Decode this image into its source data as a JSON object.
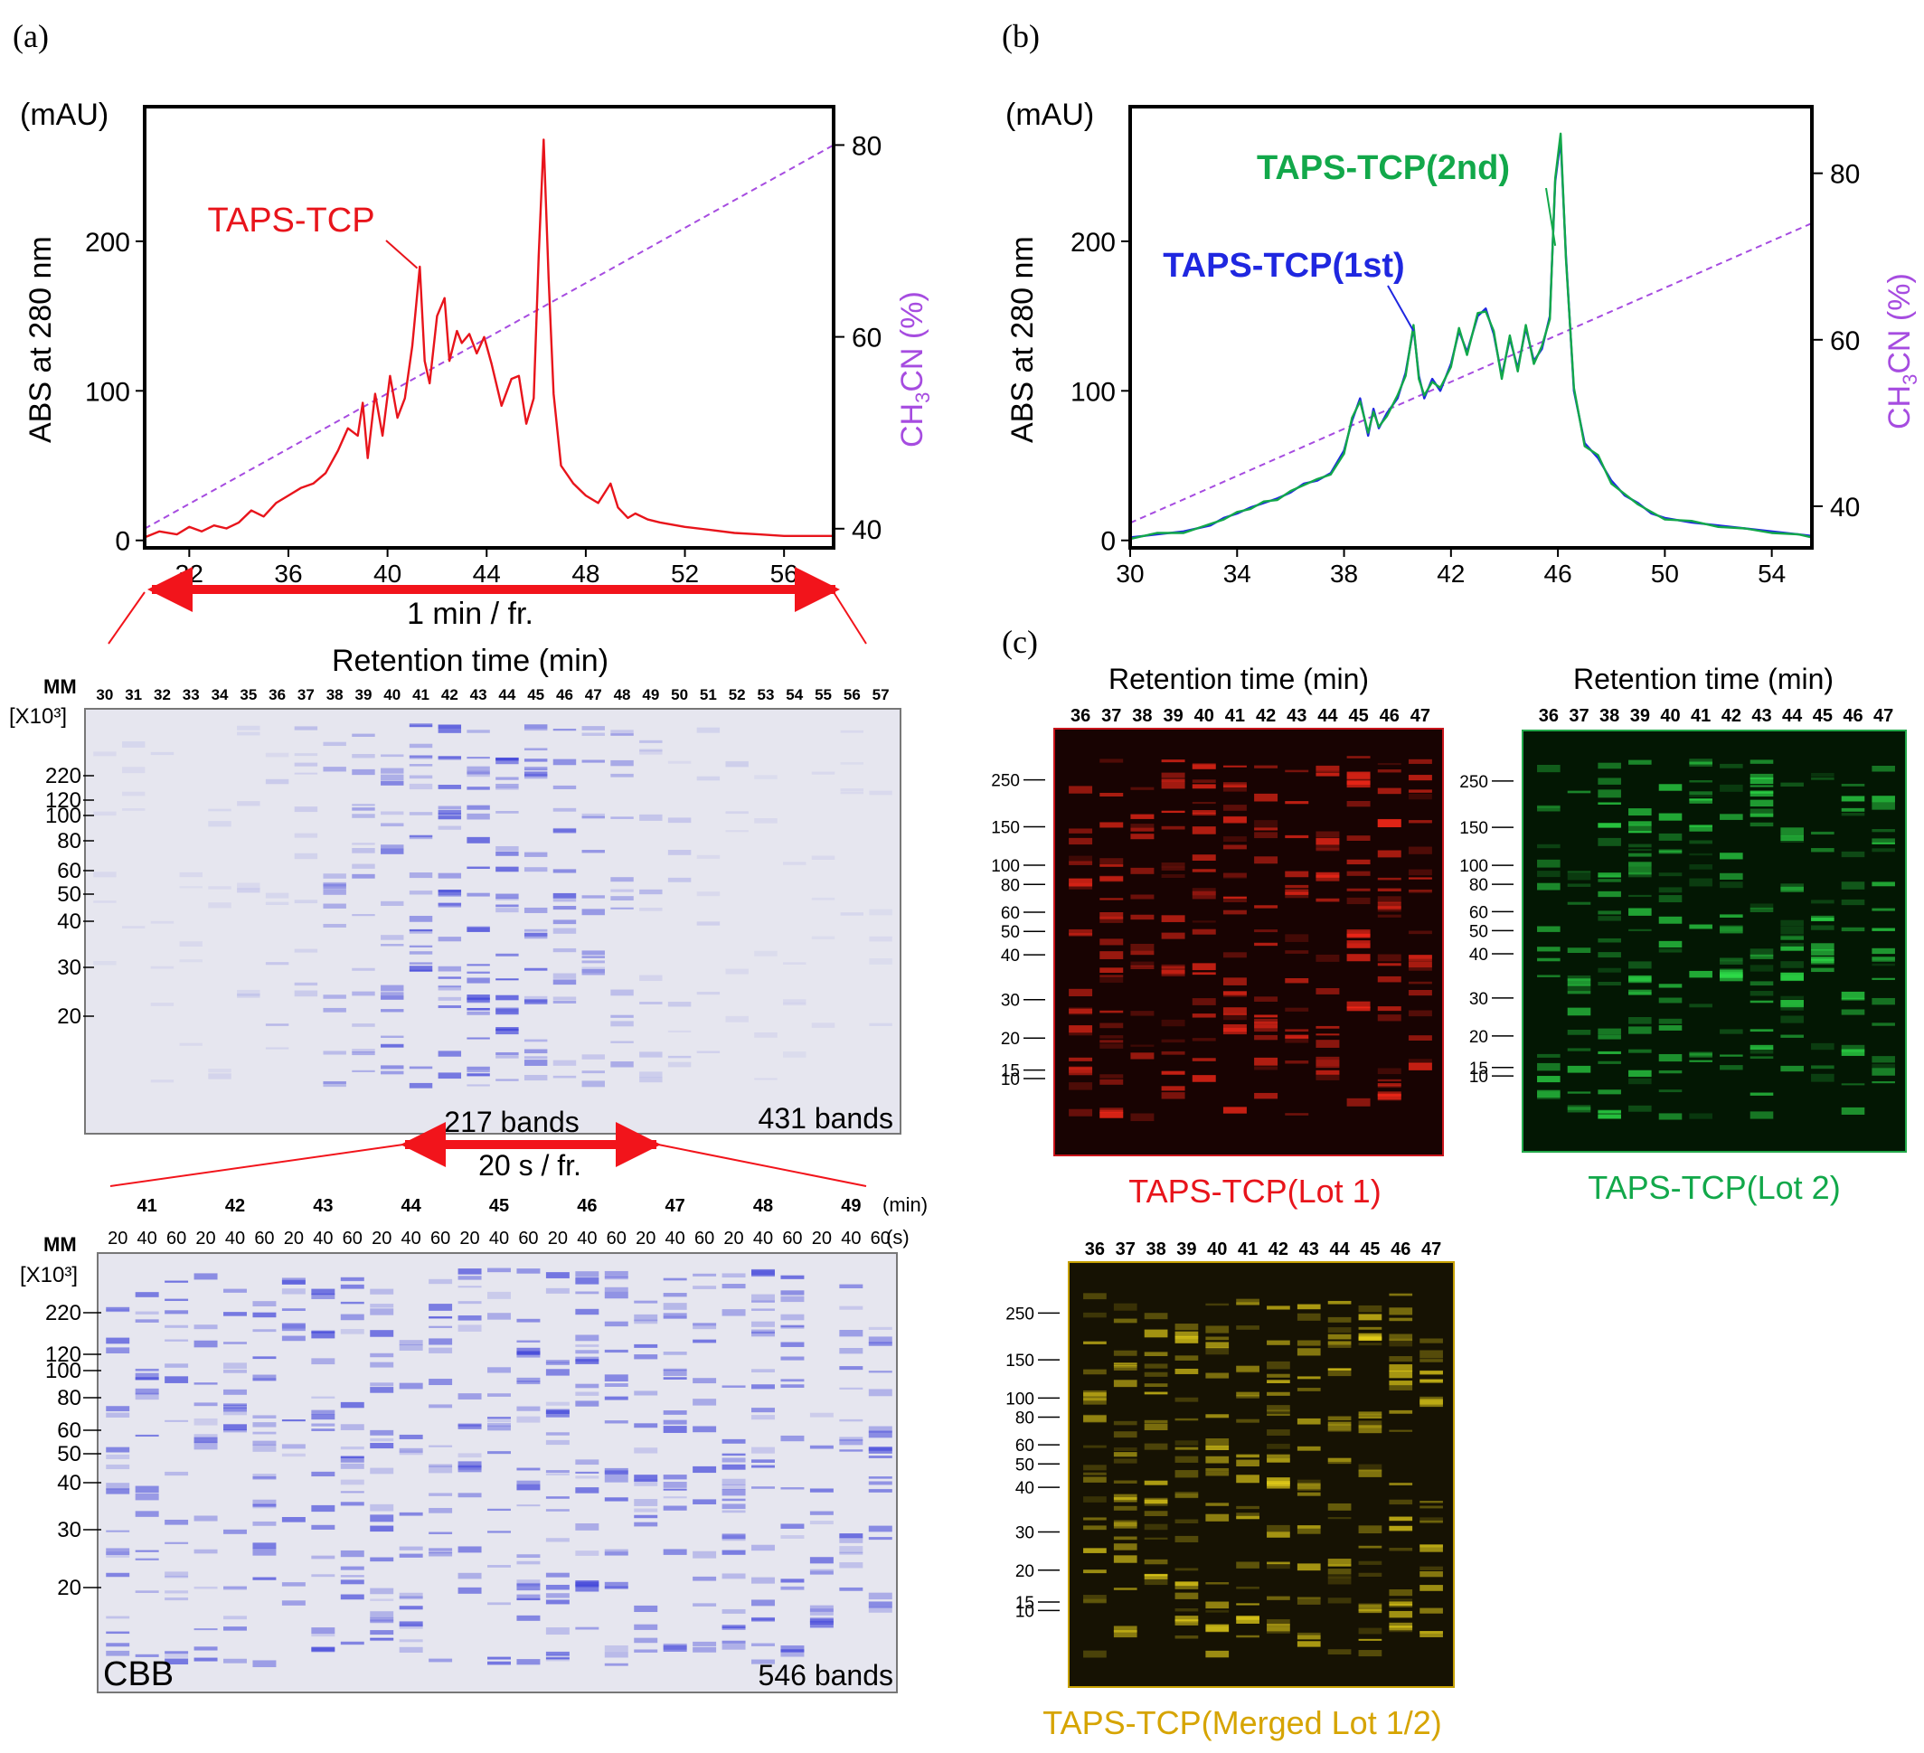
{
  "panel_labels": {
    "a": "(a)",
    "b": "(b)",
    "c": "(c)"
  },
  "colors": {
    "lot1": "#e8141b",
    "lot2": "#12a84a",
    "merged": "#d6a400",
    "first": "#1f27e0",
    "gradient": "#a64ce0",
    "arrow": "#f2141b",
    "cbb_bg": "#e6e6ef",
    "cbb_band": "#3b3fd9"
  },
  "chart_data": [
    {
      "id": "a",
      "type": "line",
      "units_label": "(mAU)",
      "ylabel": "ABS at 280 nm",
      "y2label": "CH3CN (%)",
      "xlim": [
        30.2,
        58
      ],
      "ylim": [
        -5,
        290
      ],
      "y2lim": [
        38,
        84
      ],
      "x_ticks": [
        32,
        36,
        40,
        44,
        48,
        52,
        56
      ],
      "y_ticks": [
        0,
        100,
        200
      ],
      "y2_ticks": [
        40,
        60,
        80
      ],
      "gradient": {
        "x": [
          30.2,
          58
        ],
        "y2": [
          40,
          80
        ]
      },
      "annotations": [
        {
          "text": "TAPS-TCP",
          "color": "#e8141b",
          "x": 41.2,
          "y": 182
        }
      ],
      "series": [
        {
          "color": "#e8141b",
          "x": [
            30.2,
            30.8,
            31.5,
            32,
            32.5,
            33,
            33.5,
            34,
            34.5,
            35,
            35.5,
            36,
            36.5,
            37,
            37.5,
            38,
            38.4,
            38.8,
            39,
            39.2,
            39.5,
            39.8,
            40.1,
            40.4,
            40.7,
            41,
            41.3,
            41.5,
            41.7,
            42,
            42.3,
            42.5,
            42.8,
            43,
            43.3,
            43.6,
            43.9,
            44.2,
            44.6,
            45,
            45.3,
            45.6,
            45.9,
            46.1,
            46.3,
            46.5,
            46.7,
            47,
            47.5,
            48,
            48.5,
            49,
            49.3,
            49.7,
            50,
            50.5,
            51,
            52,
            53,
            54,
            55,
            56,
            57,
            58
          ],
          "y": [
            2,
            6,
            4,
            9,
            6,
            10,
            8,
            12,
            20,
            16,
            25,
            30,
            35,
            38,
            45,
            60,
            75,
            70,
            92,
            55,
            98,
            70,
            110,
            82,
            95,
            130,
            183,
            120,
            105,
            150,
            162,
            120,
            140,
            132,
            138,
            125,
            136,
            118,
            90,
            108,
            110,
            78,
            95,
            190,
            268,
            175,
            98,
            50,
            38,
            30,
            25,
            38,
            22,
            15,
            18,
            14,
            12,
            9,
            7,
            5,
            4,
            3,
            3,
            3
          ]
        }
      ]
    },
    {
      "id": "b",
      "type": "line",
      "units_label": "(mAU)",
      "ylabel": "ABS at 280 nm",
      "y2label": "CH3CN (%)",
      "xlim": [
        30,
        55.5
      ],
      "ylim": [
        -5,
        290
      ],
      "y2lim": [
        35,
        88
      ],
      "x_ticks": [
        30,
        34,
        38,
        42,
        46,
        50,
        54
      ],
      "y_ticks": [
        0,
        100,
        200
      ],
      "y2_ticks": [
        40,
        60,
        80
      ],
      "gradient": {
        "x": [
          30,
          55.5
        ],
        "y2": [
          38,
          74
        ]
      },
      "annotations": [
        {
          "text": "TAPS-TCP(2nd)",
          "color": "#12a84a",
          "x": 45.9,
          "y": 197
        },
        {
          "text": "TAPS-TCP(1st)",
          "color": "#1f27e0",
          "x": 40.6,
          "y": 140
        }
      ],
      "series": [
        {
          "name": "TAPS-TCP(1st)",
          "color": "#1f27e0",
          "x": [
            30,
            30.5,
            31,
            32,
            33,
            33.5,
            34,
            34.5,
            35,
            35.5,
            36,
            36.5,
            37,
            37.5,
            38,
            38.3,
            38.6,
            38.9,
            39.1,
            39.3,
            39.6,
            40,
            40.3,
            40.6,
            40.8,
            41,
            41.3,
            41.6,
            42,
            42.3,
            42.6,
            43,
            43.3,
            43.6,
            43.9,
            44.2,
            44.5,
            44.8,
            45.1,
            45.4,
            45.7,
            45.9,
            46.1,
            46.3,
            46.6,
            47,
            47.5,
            48,
            48.5,
            49,
            49.5,
            50,
            51,
            52,
            53,
            54,
            55,
            55.5
          ],
          "y": [
            2,
            3,
            4,
            6,
            10,
            15,
            18,
            22,
            25,
            28,
            32,
            38,
            40,
            45,
            60,
            80,
            95,
            70,
            88,
            75,
            85,
            95,
            112,
            142,
            110,
            95,
            108,
            100,
            118,
            140,
            126,
            150,
            155,
            138,
            110,
            135,
            115,
            142,
            120,
            128,
            150,
            240,
            268,
            190,
            100,
            65,
            55,
            40,
            30,
            25,
            18,
            15,
            12,
            10,
            8,
            6,
            4,
            3
          ]
        },
        {
          "name": "TAPS-TCP(2nd)",
          "color": "#12a84a",
          "x": [
            30,
            30.5,
            31,
            32,
            33,
            33.5,
            34,
            34.5,
            35,
            35.5,
            36,
            36.5,
            37,
            37.5,
            38,
            38.3,
            38.6,
            38.9,
            39.1,
            39.3,
            39.6,
            40,
            40.3,
            40.6,
            40.8,
            41,
            41.3,
            41.6,
            42,
            42.3,
            42.6,
            43,
            43.3,
            43.6,
            43.9,
            44.2,
            44.5,
            44.8,
            45.1,
            45.4,
            45.7,
            45.9,
            46.1,
            46.3,
            46.6,
            47,
            47.5,
            48,
            48.5,
            49,
            49.5,
            50,
            51,
            52,
            53,
            54,
            55,
            55.5
          ],
          "y": [
            1,
            3,
            5,
            5,
            11,
            14,
            19,
            21,
            26,
            27,
            33,
            37,
            41,
            44,
            58,
            82,
            93,
            72,
            86,
            76,
            83,
            97,
            110,
            144,
            108,
            97,
            106,
            102,
            116,
            142,
            124,
            152,
            153,
            140,
            108,
            137,
            113,
            144,
            118,
            130,
            148,
            242,
            272,
            188,
            102,
            63,
            57,
            38,
            31,
            24,
            19,
            14,
            13,
            9,
            8,
            5,
            4,
            2
          ]
        }
      ]
    }
  ],
  "panel_a": {
    "x_label": "Retention time (min)",
    "range_label": "1 min  / fr.",
    "gel1": {
      "mm_label": "MM",
      "kda_label": "[X10³]",
      "lanes": [
        "30",
        "31",
        "32",
        "33",
        "34",
        "35",
        "36",
        "37",
        "38",
        "39",
        "40",
        "41",
        "42",
        "43",
        "44",
        "45",
        "46",
        "47",
        "48",
        "49",
        "50",
        "51",
        "52",
        "53",
        "54",
        "55",
        "56",
        "57"
      ],
      "markers": [
        "220",
        "120",
        "100",
        "80",
        "60",
        "50",
        "40",
        "30",
        "20"
      ],
      "bands_label": "431 bands"
    },
    "middle_bands_label": "217 bands",
    "range2_label": "20 s / fr.",
    "gel2": {
      "mm_label": "MM",
      "kda_label": "[X10³]",
      "minutes": [
        "41",
        "42",
        "43",
        "44",
        "45",
        "46",
        "47",
        "48",
        "49"
      ],
      "min_unit": "(min)",
      "seconds": [
        "20",
        "40",
        "60"
      ],
      "sec_unit": "(s)",
      "markers": [
        "220",
        "120",
        "100",
        "80",
        "60",
        "50",
        "40",
        "30",
        "20"
      ],
      "stain_label": "CBB",
      "bands_label": "546 bands"
    }
  },
  "panel_c": {
    "lanes": [
      "36",
      "37",
      "38",
      "39",
      "40",
      "41",
      "42",
      "43",
      "44",
      "45",
      "46",
      "47"
    ],
    "markers": [
      "250",
      "150",
      "100",
      "80",
      "60",
      "50",
      "40",
      "30",
      "20",
      "15",
      "10"
    ],
    "gels": [
      {
        "title": "Retention time (min)",
        "caption": "TAPS-TCP(Lot 1)"
      },
      {
        "title": "Retention time (min)",
        "caption": "TAPS-TCP(Lot 2)"
      },
      {
        "title": "",
        "caption": "TAPS-TCP(Merged Lot 1/2)"
      }
    ]
  }
}
